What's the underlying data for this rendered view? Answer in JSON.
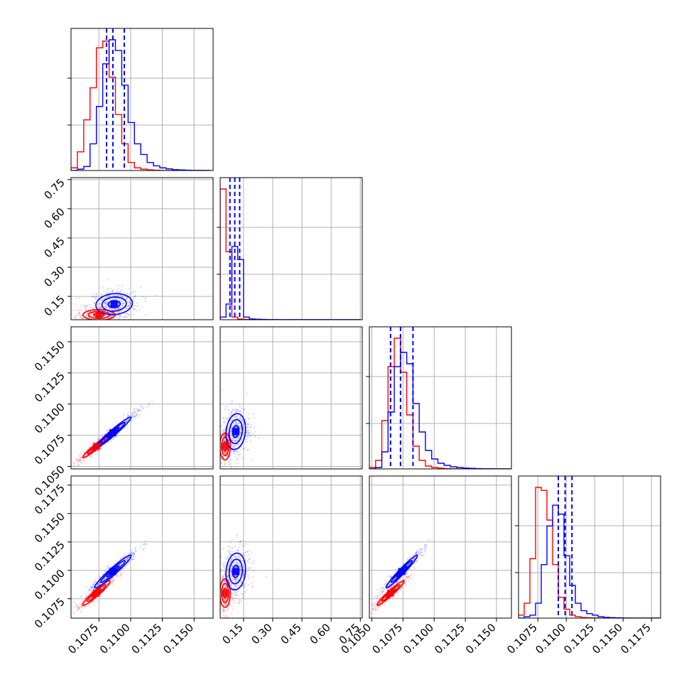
{
  "chart_data": {
    "type": "corner",
    "colors": {
      "red": "#ff0000",
      "blue": "#0000ff",
      "grid": "#b0b0b0"
    },
    "parameters": [
      {
        "ticks": [
          0.1075,
          0.11,
          0.1125,
          0.115
        ],
        "tick_labels": [
          "0.1075",
          "0.1100",
          "0.1125",
          "0.1150"
        ],
        "range": [
          0.1053,
          0.1165
        ]
      },
      {
        "ticks": [
          0.15,
          0.3,
          0.45,
          0.6,
          0.75
        ],
        "tick_labels": [
          "0.15",
          "0.30",
          "0.45",
          "0.60",
          "0.75"
        ],
        "range": [
          0.03,
          0.76
        ]
      },
      {
        "ticks": [
          0.105,
          0.1075,
          0.11,
          0.1125,
          0.115
        ],
        "tick_labels": [
          "0.1050",
          "0.1075",
          "0.1100",
          "0.1125",
          "0.1150"
        ],
        "range": [
          0.1048,
          0.1162
        ]
      },
      {
        "ticks": [
          0.1075,
          0.11,
          0.1125,
          0.115,
          0.1175
        ],
        "tick_labels": [
          "0.1075",
          "0.1100",
          "0.1125",
          "0.1150",
          "0.1175"
        ],
        "range": [
          0.1058,
          0.1183
        ]
      }
    ],
    "diagonal": [
      {
        "param": 0,
        "bins": [
          0.1053,
          0.1058,
          0.1063,
          0.1068,
          0.1073,
          0.1078,
          0.1083,
          0.1088,
          0.1093,
          0.1098,
          0.1103,
          0.1108,
          0.1113,
          0.1118,
          0.1123,
          0.1128,
          0.1133,
          0.1138,
          0.1143,
          0.1148,
          0.1153,
          0.1158,
          0.1163
        ],
        "red": [
          0.02,
          0.14,
          0.38,
          0.62,
          0.92,
          0.97,
          0.7,
          0.42,
          0.2,
          0.06,
          0.02,
          0.01,
          0.005,
          0.002,
          0,
          0,
          0,
          0,
          0,
          0,
          0,
          0
        ],
        "blue": [
          0,
          0.01,
          0.03,
          0.2,
          0.48,
          0.8,
          0.98,
          0.9,
          0.64,
          0.36,
          0.2,
          0.12,
          0.06,
          0.035,
          0.02,
          0.012,
          0.006,
          0.004,
          0.002,
          0.001,
          0.001,
          0
        ],
        "quantiles": [
          0.1081,
          0.1086,
          0.1095
        ]
      },
      {
        "param": 1,
        "bins": [
          0.03,
          0.06,
          0.09,
          0.12,
          0.15,
          0.18,
          0.21,
          0.24,
          0.27,
          0.3,
          0.33,
          0.36,
          0.39,
          0.42,
          0.45,
          0.48,
          0.51,
          0.54,
          0.57,
          0.6,
          0.63,
          0.66,
          0.69,
          0.72,
          0.75
        ],
        "red": [
          1.0,
          0.52,
          0.02,
          0.005,
          0.002,
          0,
          0,
          0,
          0,
          0,
          0,
          0,
          0,
          0,
          0,
          0,
          0,
          0,
          0,
          0,
          0,
          0,
          0,
          0
        ],
        "blue": [
          0.02,
          0.12,
          0.56,
          0.46,
          0.02,
          0.006,
          0.004,
          0.002,
          0.001,
          0.001,
          0,
          0,
          0,
          0,
          0,
          0,
          0,
          0,
          0,
          0,
          0,
          0,
          0,
          0
        ],
        "quantiles": [
          0.08,
          0.105,
          0.13
        ]
      },
      {
        "param": 2,
        "bins": [
          0.1048,
          0.1053,
          0.1058,
          0.1063,
          0.1068,
          0.1073,
          0.1078,
          0.1083,
          0.1088,
          0.1093,
          0.1098,
          0.1103,
          0.1108,
          0.1113,
          0.1118,
          0.1123,
          0.1128,
          0.1133,
          0.1138,
          0.1143,
          0.1148,
          0.1153,
          0.1158,
          0.1163
        ],
        "red": [
          0.01,
          0.06,
          0.34,
          0.72,
          0.92,
          0.68,
          0.38,
          0.16,
          0.06,
          0.02,
          0.01,
          0.005,
          0.002,
          0.001,
          0,
          0,
          0,
          0,
          0,
          0,
          0,
          0,
          0
        ],
        "blue": [
          0,
          0.01,
          0.12,
          0.4,
          0.72,
          0.82,
          0.74,
          0.46,
          0.26,
          0.13,
          0.07,
          0.04,
          0.025,
          0.015,
          0.01,
          0.006,
          0.004,
          0.002,
          0.001,
          0.001,
          0,
          0,
          0
        ],
        "quantiles": [
          0.1065,
          0.1073,
          0.1083
        ]
      },
      {
        "param": 3,
        "bins": [
          0.1058,
          0.1063,
          0.1068,
          0.1073,
          0.1078,
          0.1083,
          0.1088,
          0.1093,
          0.1098,
          0.1103,
          0.1108,
          0.1113,
          0.1118,
          0.1123,
          0.1128,
          0.1133,
          0.1138,
          0.1143,
          0.1148,
          0.1153,
          0.1158,
          0.1163,
          0.1168,
          0.1173,
          0.1178,
          0.1183
        ],
        "red": [
          0.02,
          0.1,
          0.4,
          0.88,
          0.86,
          0.66,
          0.36,
          0.14,
          0.06,
          0.02,
          0.01,
          0.004,
          0.002,
          0.001,
          0,
          0,
          0,
          0,
          0,
          0,
          0,
          0,
          0,
          0,
          0
        ],
        "blue": [
          0,
          0.01,
          0.02,
          0.1,
          0.36,
          0.62,
          0.76,
          0.7,
          0.42,
          0.22,
          0.1,
          0.05,
          0.03,
          0.02,
          0.01,
          0.005,
          0.003,
          0.002,
          0.001,
          0,
          0,
          0,
          0,
          0,
          0
        ],
        "quantiles": [
          0.1093,
          0.1099,
          0.1105
        ]
      }
    ],
    "pairs": [
      {
        "x": 0,
        "y": 1,
        "red": {
          "cx": 0.1075,
          "cy": 0.055,
          "sx": 0.0007,
          "sy": 0.015,
          "rho": 0.0
        },
        "blue": {
          "cx": 0.1087,
          "cy": 0.11,
          "sx": 0.0008,
          "sy": 0.03,
          "rho": 0.1
        }
      },
      {
        "x": 0,
        "y": 2,
        "red": {
          "cx": 0.1073,
          "cy": 0.1066,
          "sx": 0.0006,
          "sy": 0.0005,
          "rho": 0.96
        },
        "blue": {
          "cx": 0.1086,
          "cy": 0.1077,
          "sx": 0.0008,
          "sy": 0.0007,
          "rho": 0.97
        }
      },
      {
        "x": 1,
        "y": 2,
        "red": {
          "cx": 0.055,
          "cy": 0.1066,
          "sx": 0.015,
          "sy": 0.0006,
          "rho": 0.0
        },
        "blue": {
          "cx": 0.11,
          "cy": 0.1078,
          "sx": 0.028,
          "sy": 0.0008,
          "rho": 0.15
        }
      },
      {
        "x": 0,
        "y": 3,
        "red": {
          "cx": 0.1073,
          "cy": 0.108,
          "sx": 0.0006,
          "sy": 0.0006,
          "rho": 0.95
        },
        "blue": {
          "cx": 0.1086,
          "cy": 0.1099,
          "sx": 0.0008,
          "sy": 0.0008,
          "rho": 0.96
        }
      },
      {
        "x": 1,
        "y": 3,
        "red": {
          "cx": 0.055,
          "cy": 0.108,
          "sx": 0.015,
          "sy": 0.0007,
          "rho": 0.0
        },
        "blue": {
          "cx": 0.11,
          "cy": 0.1099,
          "sx": 0.028,
          "sy": 0.0009,
          "rho": 0.12
        }
      },
      {
        "x": 2,
        "y": 3,
        "red": {
          "cx": 0.1065,
          "cy": 0.108,
          "sx": 0.0006,
          "sy": 0.0006,
          "rho": 0.96
        },
        "blue": {
          "cx": 0.1074,
          "cy": 0.1099,
          "sx": 0.0007,
          "sy": 0.0008,
          "rho": 0.97
        }
      }
    ],
    "grid": true
  }
}
